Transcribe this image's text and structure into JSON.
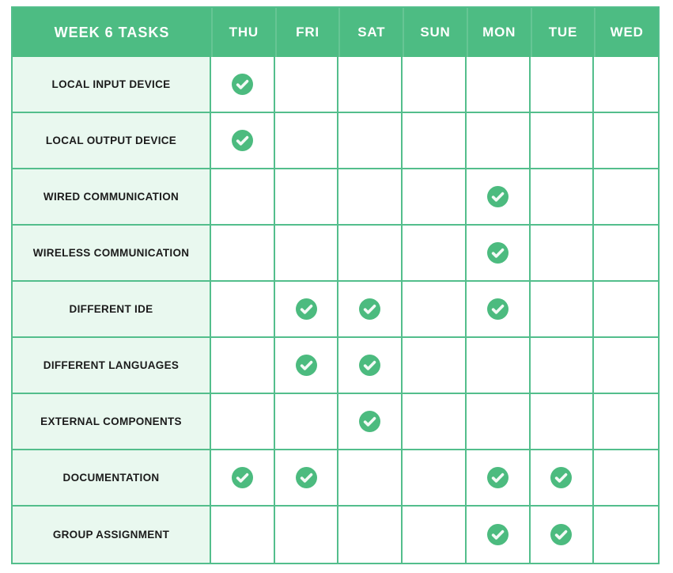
{
  "colors": {
    "header-bg": "#4DBC83",
    "header-text": "#FFFFFF",
    "grid-line": "#53BE8C",
    "label-bg": "#E9F8EF",
    "label-text": "#1B1B1B",
    "check-fill": "#4CBB7F",
    "check-mark": "#F3FAF6"
  },
  "icons": {
    "check": "check-circle-icon"
  },
  "chart_data": {
    "type": "table",
    "title": "WEEK 6 TASKS",
    "columns": [
      "THU",
      "FRI",
      "SAT",
      "SUN",
      "MON",
      "TUE",
      "WED"
    ],
    "rows": [
      {
        "label": "LOCAL INPUT DEVICE",
        "checks": [
          true,
          false,
          false,
          false,
          false,
          false,
          false
        ]
      },
      {
        "label": "LOCAL OUTPUT DEVICE",
        "checks": [
          true,
          false,
          false,
          false,
          false,
          false,
          false
        ]
      },
      {
        "label": "WIRED COMMUNICATION",
        "checks": [
          false,
          false,
          false,
          false,
          true,
          false,
          false
        ]
      },
      {
        "label": "WIRELESS COMMUNICATION",
        "checks": [
          false,
          false,
          false,
          false,
          true,
          false,
          false
        ]
      },
      {
        "label": "DIFFERENT IDE",
        "checks": [
          false,
          true,
          true,
          false,
          true,
          false,
          false
        ]
      },
      {
        "label": "DIFFERENT LANGUAGES",
        "checks": [
          false,
          true,
          true,
          false,
          false,
          false,
          false
        ]
      },
      {
        "label": "EXTERNAL COMPONENTS",
        "checks": [
          false,
          false,
          true,
          false,
          false,
          false,
          false
        ]
      },
      {
        "label": "DOCUMENTATION",
        "checks": [
          true,
          true,
          false,
          false,
          true,
          true,
          false
        ]
      },
      {
        "label": "GROUP ASSIGNMENT",
        "checks": [
          false,
          false,
          false,
          false,
          true,
          true,
          false
        ]
      }
    ],
    "legend_position": "none",
    "grid": true
  }
}
